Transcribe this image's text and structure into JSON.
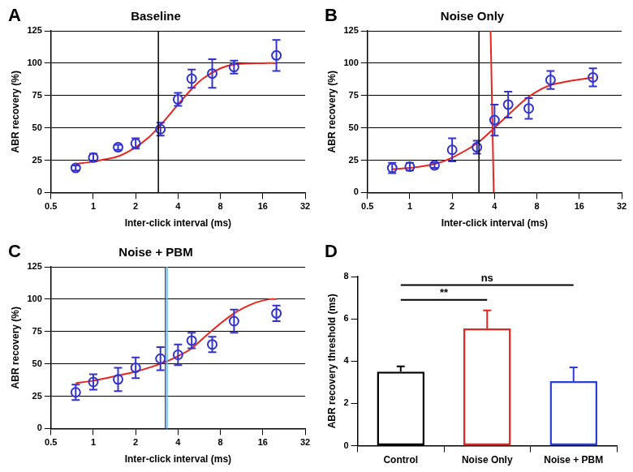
{
  "chart_data": [
    {
      "type": "scatter",
      "panel": "A",
      "title": "Baseline",
      "x_label": "Inter-click interval (ms)",
      "y_label": "ABR recovery (%)",
      "log": "x",
      "grid": "y",
      "xlim": [
        0.5,
        32
      ],
      "xticks": [
        0.5,
        1,
        2,
        4,
        8,
        16,
        32
      ],
      "ylim": [
        0,
        125
      ],
      "yticks": [
        0,
        25,
        50,
        75,
        100,
        125
      ],
      "series": [
        {
          "type": "line",
          "line_style": "solid",
          "color": "#e8251f",
          "x": [
            0.75,
            1,
            1.5,
            2,
            2.5,
            3,
            4,
            5,
            6,
            8,
            10,
            16,
            20
          ],
          "values": [
            22,
            24,
            28,
            35,
            43,
            52,
            68,
            80,
            88,
            96,
            99,
            100,
            100
          ]
        },
        {
          "type": "scatter",
          "marker": "circle",
          "color": "#3333cc",
          "x": [
            0.75,
            1,
            1.5,
            2,
            3,
            4,
            5,
            7,
            10,
            20
          ],
          "values": [
            19,
            27,
            35,
            38,
            49,
            72,
            88,
            92,
            97,
            106
          ],
          "errors": [
            2,
            3,
            2,
            4,
            5,
            5,
            7,
            11,
            5,
            12
          ]
        }
      ],
      "vlines": [
        {
          "x": 2.9,
          "color": "#000000"
        }
      ]
    },
    {
      "type": "scatter",
      "panel": "B",
      "title": "Noise Only",
      "x_label": "Inter-click interval (ms)",
      "y_label": "ABR recovery (%)",
      "log": "x",
      "grid": "y",
      "xlim": [
        0.5,
        32
      ],
      "xticks": [
        0.5,
        1,
        2,
        4,
        8,
        16,
        32
      ],
      "ylim": [
        0,
        125
      ],
      "yticks": [
        0,
        25,
        50,
        75,
        100,
        125
      ],
      "series": [
        {
          "type": "line",
          "line_style": "solid",
          "color": "#e8251f",
          "x": [
            0.75,
            1,
            1.5,
            2,
            3,
            4,
            5,
            7,
            10,
            20
          ],
          "values": [
            18,
            19,
            22,
            27,
            38,
            50,
            60,
            74,
            83,
            89
          ]
        },
        {
          "type": "line",
          "line_style": "solid",
          "color": "#e8251f",
          "x": [
            3.95,
            3.75
          ],
          "values": [
            0,
            125
          ]
        },
        {
          "type": "scatter",
          "marker": "circle",
          "color": "#3333cc",
          "x": [
            0.75,
            1,
            1.5,
            2,
            3,
            4,
            5,
            7,
            10,
            20
          ],
          "values": [
            19,
            20,
            21,
            33,
            35,
            56,
            68,
            65,
            87,
            89
          ],
          "errors": [
            4,
            3,
            2,
            9,
            5,
            12,
            10,
            8,
            7,
            7
          ]
        }
      ],
      "vlines": [
        {
          "x": 3.1,
          "color": "#000000"
        }
      ]
    },
    {
      "type": "scatter",
      "panel": "C",
      "title": "Noise + PBM",
      "x_label": "Inter-click interval (ms)",
      "y_label": "ABR recovery (%)",
      "log": "x",
      "grid": "y",
      "xlim": [
        0.5,
        32
      ],
      "xticks": [
        0.5,
        1,
        2,
        4,
        8,
        16,
        32
      ],
      "ylim": [
        0,
        125
      ],
      "yticks": [
        0,
        25,
        50,
        75,
        100,
        125
      ],
      "series": [
        {
          "type": "line",
          "line_style": "solid",
          "color": "#e8251f",
          "x": [
            0.75,
            1,
            1.5,
            2,
            3,
            4,
            5,
            7,
            10,
            14,
            18,
            20
          ],
          "values": [
            35,
            37,
            41,
            44,
            50,
            56,
            62,
            76,
            89,
            97,
            100,
            100
          ]
        },
        {
          "type": "scatter",
          "marker": "circle",
          "color": "#3333cc",
          "x": [
            0.75,
            1,
            1.5,
            2,
            3,
            4,
            5,
            7,
            10,
            20
          ],
          "values": [
            28,
            36,
            38,
            47,
            54,
            57,
            68,
            65,
            83,
            89
          ],
          "errors": [
            6,
            6,
            9,
            8,
            9,
            8,
            6,
            6,
            9,
            6
          ]
        }
      ],
      "vlines": [
        {
          "x": 3.25,
          "color": "#1f5fbf"
        },
        {
          "x": 3.35,
          "color": "#5ec8d8"
        }
      ]
    },
    {
      "type": "bar",
      "panel": "D",
      "y_label": "ABR recovery threshold (ms)",
      "grid": false,
      "categories": [
        "Control",
        "Noise Only",
        "Noise + PBM"
      ],
      "values": [
        3.5,
        5.55,
        3.05
      ],
      "errors": [
        0.25,
        0.85,
        0.65
      ],
      "colors": [
        "#000000",
        "#e8251f",
        "#2a3fd6"
      ],
      "ylim": [
        0,
        8
      ],
      "yticks": [
        0,
        2,
        4,
        6,
        8
      ],
      "annotations": [
        {
          "text": "**",
          "from": "Control",
          "to": "Noise Only",
          "y": 6.9
        },
        {
          "text": "ns",
          "from": "Control",
          "to": "Noise + PBM",
          "y": 7.6
        }
      ]
    }
  ]
}
